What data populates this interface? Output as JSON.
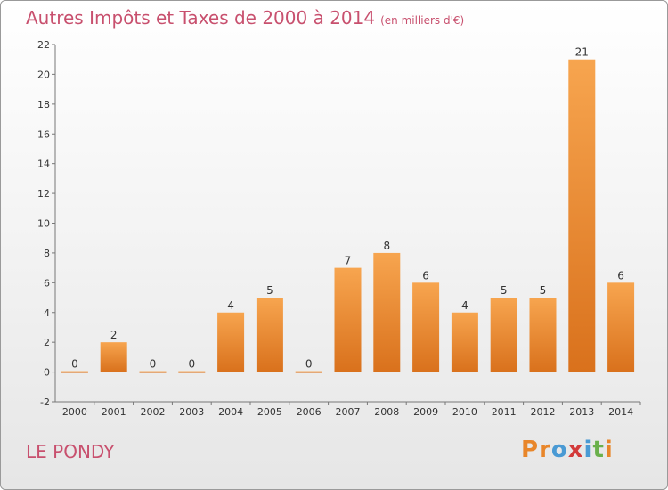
{
  "header": {
    "title": "Autres Impôts et Taxes de 2000 à 2014",
    "unit": "(en milliers d'€)"
  },
  "footer": {
    "commune": "LE PONDY",
    "logo_letters": [
      "P",
      "r",
      "o",
      "x",
      "i",
      "t",
      "i"
    ]
  },
  "colors": {
    "title": "#c8506e",
    "bar_top": "#f7a54f",
    "bar_bottom": "#d9711c",
    "logo": [
      "#e8862a",
      "#e8862a",
      "#4a9ad4",
      "#d33a3a",
      "#4a9ad4",
      "#6ab04c",
      "#e8862a"
    ]
  },
  "chart_data": {
    "type": "bar",
    "categories": [
      "2000",
      "2001",
      "2002",
      "2003",
      "2004",
      "2005",
      "2006",
      "2007",
      "2008",
      "2009",
      "2010",
      "2011",
      "2012",
      "2013",
      "2014"
    ],
    "values": [
      0,
      2,
      0,
      0,
      4,
      5,
      0,
      7,
      8,
      6,
      4,
      5,
      5,
      21,
      6
    ],
    "value_labels": [
      "0",
      "2",
      "0",
      "0",
      "4",
      "5",
      "0",
      "7",
      "8",
      "6",
      "4",
      "5",
      "5",
      "21",
      "6"
    ],
    "y_ticks": [
      "-2",
      "0",
      "2",
      "4",
      "6",
      "8",
      "10",
      "12",
      "14",
      "16",
      "18",
      "20",
      "22"
    ],
    "ylim": [
      -2,
      22
    ],
    "grid": false,
    "legend": "none"
  }
}
